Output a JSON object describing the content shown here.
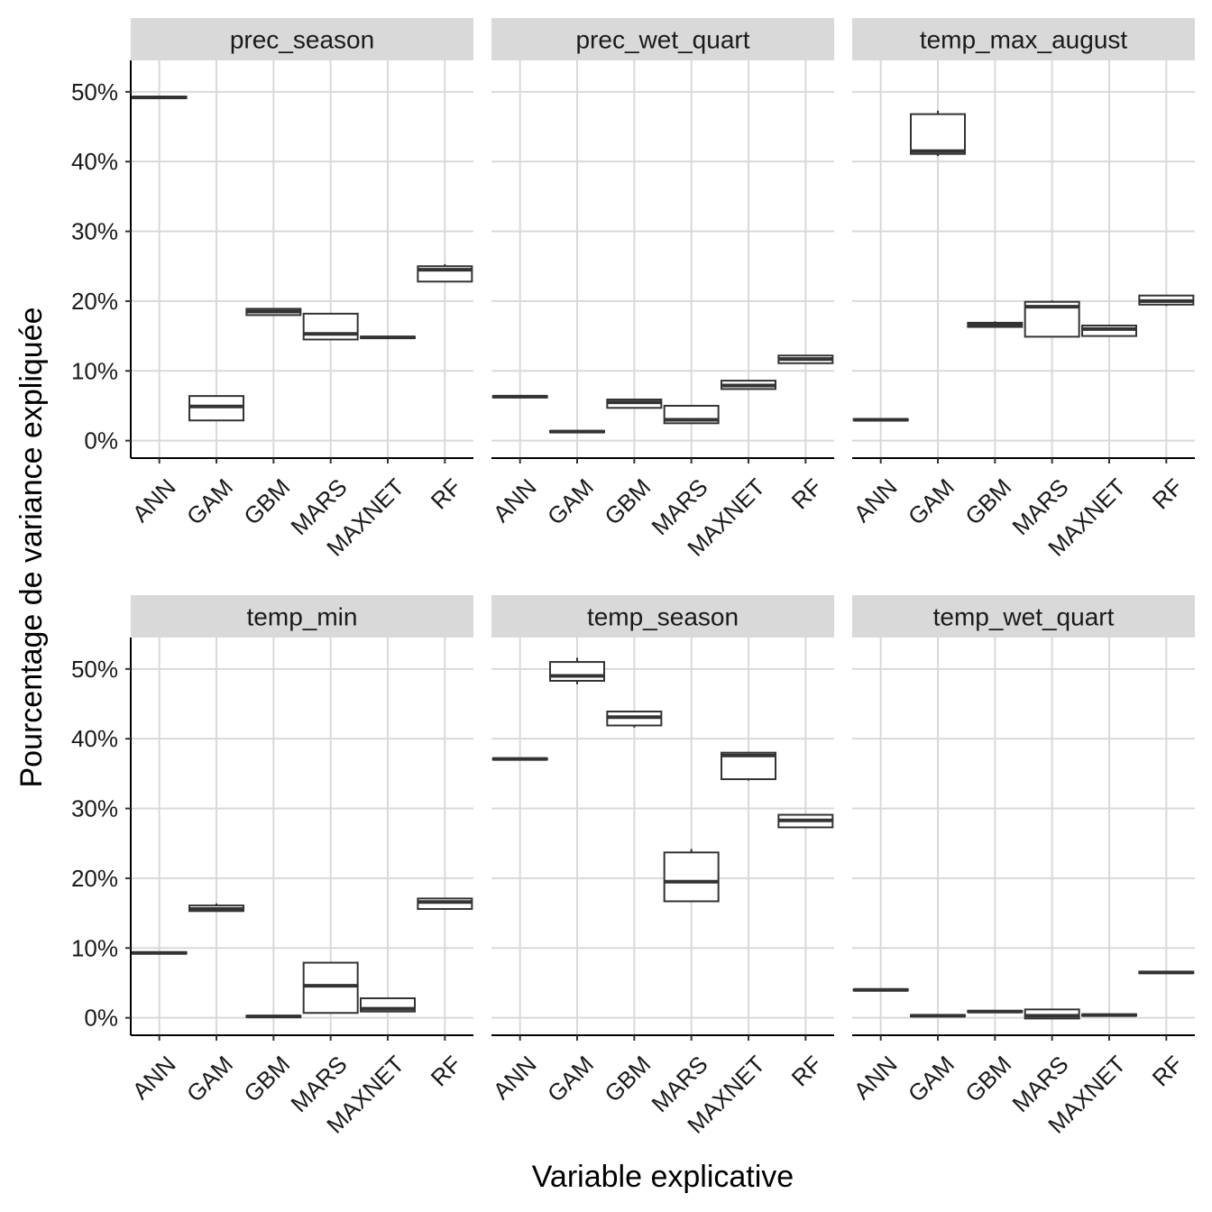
{
  "chart_data": {
    "type": "boxplot",
    "xlabel": "Variable explicative",
    "ylabel": "Pourcentage de variance expliquée",
    "categories": [
      "ANN",
      "GAM",
      "GBM",
      "MARS",
      "MAXNET",
      "RF"
    ],
    "ylim": [
      -2.5,
      54.5
    ],
    "yticks": [
      0,
      10,
      20,
      30,
      40,
      50
    ],
    "ytick_labels": [
      "0%",
      "10%",
      "20%",
      "30%",
      "40%",
      "50%"
    ],
    "grid": true,
    "facets": [
      {
        "title": "prec_season",
        "boxes": [
          {
            "category": "ANN",
            "min": 49.1,
            "q1": 49.1,
            "median": 49.2,
            "q3": 49.3,
            "max": 49.3
          },
          {
            "category": "GAM",
            "min": 2.9,
            "q1": 2.9,
            "median": 4.9,
            "q3": 6.4,
            "max": 6.4
          },
          {
            "category": "GBM",
            "min": 18.0,
            "q1": 18.0,
            "median": 18.5,
            "q3": 18.9,
            "max": 18.9
          },
          {
            "category": "MARS",
            "min": 14.5,
            "q1": 14.5,
            "median": 15.3,
            "q3": 18.2,
            "max": 18.2
          },
          {
            "category": "MAXNET",
            "min": 14.6,
            "q1": 14.7,
            "median": 14.8,
            "q3": 14.9,
            "max": 15.0
          },
          {
            "category": "RF",
            "min": 22.8,
            "q1": 22.8,
            "median": 24.5,
            "q3": 25.0,
            "max": 25.3
          }
        ]
      },
      {
        "title": "prec_wet_quart",
        "boxes": [
          {
            "category": "ANN",
            "min": 6.2,
            "q1": 6.2,
            "median": 6.3,
            "q3": 6.4,
            "max": 6.4
          },
          {
            "category": "GAM",
            "min": 1.2,
            "q1": 1.2,
            "median": 1.3,
            "q3": 1.4,
            "max": 1.4
          },
          {
            "category": "GBM",
            "min": 4.7,
            "q1": 4.7,
            "median": 5.5,
            "q3": 5.9,
            "max": 5.9
          },
          {
            "category": "MARS",
            "min": 2.5,
            "q1": 2.5,
            "median": 3.0,
            "q3": 5.0,
            "max": 5.0
          },
          {
            "category": "MAXNET",
            "min": 7.4,
            "q1": 7.4,
            "median": 7.9,
            "q3": 8.6,
            "max": 8.6
          },
          {
            "category": "RF",
            "min": 11.1,
            "q1": 11.1,
            "median": 11.7,
            "q3": 12.2,
            "max": 12.2
          }
        ]
      },
      {
        "title": "temp_max_august",
        "boxes": [
          {
            "category": "ANN",
            "min": 2.9,
            "q1": 2.9,
            "median": 3.0,
            "q3": 3.1,
            "max": 3.1
          },
          {
            "category": "GAM",
            "min": 40.8,
            "q1": 41.1,
            "median": 41.5,
            "q3": 46.8,
            "max": 47.3
          },
          {
            "category": "GBM",
            "min": 16.2,
            "q1": 16.3,
            "median": 16.6,
            "q3": 16.9,
            "max": 17.1
          },
          {
            "category": "MARS",
            "min": 14.9,
            "q1": 14.9,
            "median": 19.2,
            "q3": 19.9,
            "max": 20.1
          },
          {
            "category": "MAXNET",
            "min": 15.0,
            "q1": 15.0,
            "median": 16.0,
            "q3": 16.5,
            "max": 16.6
          },
          {
            "category": "RF",
            "min": 19.3,
            "q1": 19.5,
            "median": 20.0,
            "q3": 20.8,
            "max": 20.8
          }
        ]
      },
      {
        "title": "temp_min",
        "boxes": [
          {
            "category": "ANN",
            "min": 9.2,
            "q1": 9.2,
            "median": 9.3,
            "q3": 9.4,
            "max": 9.4
          },
          {
            "category": "GAM",
            "min": 15.3,
            "q1": 15.3,
            "median": 15.6,
            "q3": 16.1,
            "max": 16.4
          },
          {
            "category": "GBM",
            "min": 0.1,
            "q1": 0.1,
            "median": 0.2,
            "q3": 0.3,
            "max": 0.3
          },
          {
            "category": "MARS",
            "min": 0.7,
            "q1": 0.7,
            "median": 4.6,
            "q3": 7.9,
            "max": 7.9
          },
          {
            "category": "MAXNET",
            "min": 0.9,
            "q1": 0.9,
            "median": 1.3,
            "q3": 2.8,
            "max": 2.8
          },
          {
            "category": "RF",
            "min": 15.6,
            "q1": 15.6,
            "median": 16.6,
            "q3": 17.1,
            "max": 17.1
          }
        ]
      },
      {
        "title": "temp_season",
        "boxes": [
          {
            "category": "ANN",
            "min": 37.0,
            "q1": 37.0,
            "median": 37.1,
            "q3": 37.2,
            "max": 37.2
          },
          {
            "category": "GAM",
            "min": 47.8,
            "q1": 48.3,
            "median": 49.0,
            "q3": 51.0,
            "max": 51.6
          },
          {
            "category": "GBM",
            "min": 41.6,
            "q1": 41.9,
            "median": 43.1,
            "q3": 43.9,
            "max": 43.9
          },
          {
            "category": "MARS",
            "min": 16.6,
            "q1": 16.7,
            "median": 19.5,
            "q3": 23.7,
            "max": 24.2
          },
          {
            "category": "MAXNET",
            "min": 34.0,
            "q1": 34.2,
            "median": 37.6,
            "q3": 38.0,
            "max": 38.0
          },
          {
            "category": "RF",
            "min": 27.3,
            "q1": 27.3,
            "median": 28.3,
            "q3": 29.1,
            "max": 29.1
          }
        ]
      },
      {
        "title": "temp_wet_quart",
        "boxes": [
          {
            "category": "ANN",
            "min": 3.9,
            "q1": 3.9,
            "median": 4.0,
            "q3": 4.1,
            "max": 4.1
          },
          {
            "category": "GAM",
            "min": 0.2,
            "q1": 0.2,
            "median": 0.3,
            "q3": 0.4,
            "max": 0.4
          },
          {
            "category": "GBM",
            "min": 0.8,
            "q1": 0.8,
            "median": 0.9,
            "q3": 1.0,
            "max": 1.0
          },
          {
            "category": "MARS",
            "min": -0.1,
            "q1": -0.1,
            "median": 0.3,
            "q3": 1.2,
            "max": 1.2
          },
          {
            "category": "MAXNET",
            "min": 0.3,
            "q1": 0.3,
            "median": 0.4,
            "q3": 0.5,
            "max": 0.5
          },
          {
            "category": "RF",
            "min": 6.4,
            "q1": 6.4,
            "median": 6.5,
            "q3": 6.6,
            "max": 6.6
          }
        ]
      }
    ],
    "colors": {
      "strip": "#d9d9d9",
      "grid": "#d9d9d9",
      "box_stroke": "#333333",
      "axis": "#000000"
    }
  }
}
